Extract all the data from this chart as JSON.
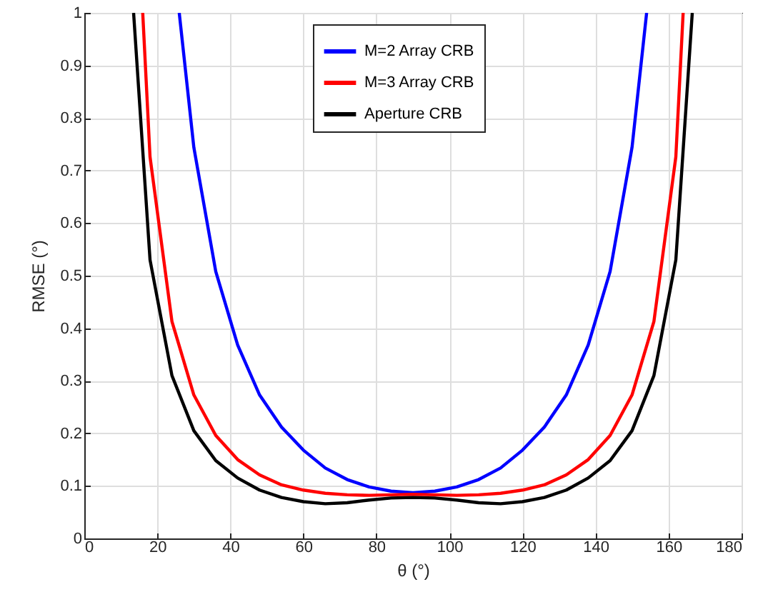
{
  "chart_data": {
    "type": "line",
    "xlabel": "θ (°)",
    "ylabel": "RMSE (°)",
    "xlim": [
      0,
      180
    ],
    "ylim": [
      0,
      1
    ],
    "xticks": [
      0,
      20,
      40,
      60,
      80,
      100,
      120,
      140,
      160,
      180
    ],
    "yticks": [
      0,
      0.1,
      0.2,
      0.3,
      0.4,
      0.5,
      0.6,
      0.7,
      0.8,
      0.9,
      1
    ],
    "grid": true,
    "legend": "top",
    "line_style": "solid",
    "marker": "none",
    "series": [
      {
        "name": "M=2 Array CRB",
        "color": "#0000ff",
        "x": [
          26,
          30,
          36,
          42,
          48,
          54,
          60,
          66,
          72,
          78,
          84,
          90,
          96,
          102,
          108,
          114,
          120,
          126,
          132,
          138,
          144,
          150,
          154
        ],
        "values": [
          1,
          0.744,
          0.508,
          0.368,
          0.273,
          0.212,
          0.168,
          0.134,
          0.112,
          0.098,
          0.09,
          0.087,
          0.09,
          0.098,
          0.112,
          0.134,
          0.168,
          0.212,
          0.273,
          0.368,
          0.508,
          0.744,
          1
        ]
      },
      {
        "name": "M=3 Array CRB",
        "color": "#ff0000",
        "x": [
          16,
          18,
          24,
          30,
          36,
          42,
          48,
          54,
          60,
          66,
          72,
          78,
          84,
          90,
          96,
          102,
          108,
          114,
          120,
          126,
          132,
          138,
          144,
          150,
          156,
          162,
          164
        ],
        "values": [
          1,
          0.726,
          0.413,
          0.273,
          0.196,
          0.15,
          0.121,
          0.102,
          0.092,
          0.086,
          0.083,
          0.082,
          0.083,
          0.084,
          0.083,
          0.082,
          0.083,
          0.086,
          0.092,
          0.102,
          0.121,
          0.15,
          0.196,
          0.273,
          0.413,
          0.726,
          1
        ]
      },
      {
        "name": "Aperture CRB",
        "color": "#000000",
        "x": [
          13.5,
          18,
          24,
          30,
          36,
          42,
          48,
          54,
          60,
          66,
          72,
          78,
          84,
          90,
          96,
          102,
          108,
          114,
          120,
          126,
          132,
          138,
          144,
          150,
          156,
          162,
          166.5
        ],
        "values": [
          1,
          0.53,
          0.31,
          0.205,
          0.148,
          0.115,
          0.092,
          0.078,
          0.07,
          0.066,
          0.068,
          0.073,
          0.077,
          0.078,
          0.077,
          0.073,
          0.068,
          0.066,
          0.07,
          0.078,
          0.092,
          0.115,
          0.148,
          0.205,
          0.31,
          0.53,
          1
        ]
      }
    ]
  }
}
